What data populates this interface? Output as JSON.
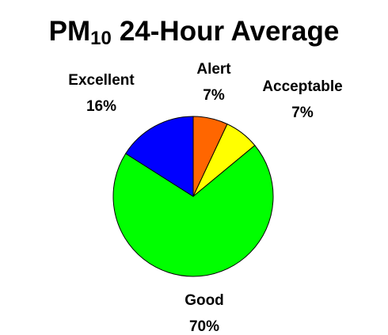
{
  "chart_data": {
    "type": "pie",
    "title": {
      "main": "PM",
      "subscript": "10",
      "rest": "24-Hour Average"
    },
    "categories": [
      "Alert",
      "Acceptable",
      "Good",
      "Excellent"
    ],
    "values": [
      7,
      7,
      70,
      16
    ],
    "value_labels": [
      "7%",
      "7%",
      "70%",
      "16%"
    ],
    "colors": [
      "#ff6600",
      "#ffff00",
      "#00ff00",
      "#0000ff"
    ]
  }
}
